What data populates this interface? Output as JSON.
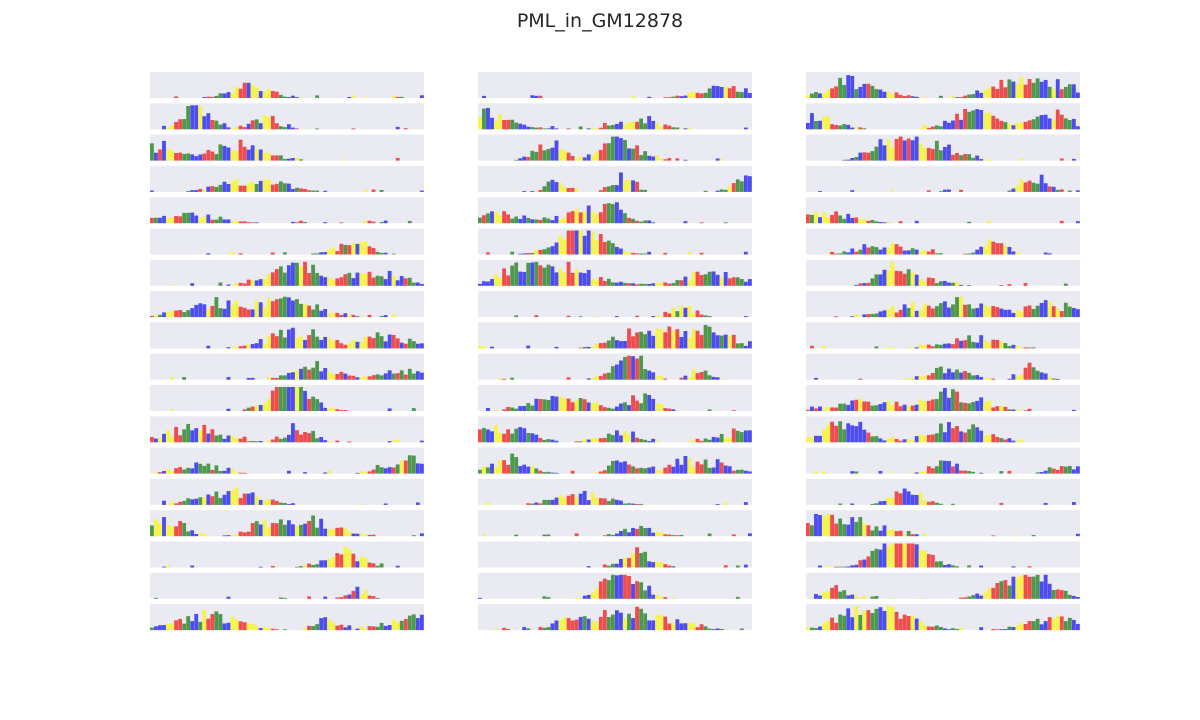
{
  "chart_data": {
    "type": "bar",
    "title": "PML_in_GM12878",
    "layout": {
      "rows": 18,
      "cols": 3,
      "bins_per_panel": 68
    },
    "background_color": "#eaeaf2",
    "base_colors": {
      "A": "#3b8f3b",
      "C": "#3b3bf0",
      "G": "#f5f53b",
      "T": "#f03b3b"
    },
    "bin_value_range": [
      0,
      1
    ],
    "seed": 12878
  }
}
